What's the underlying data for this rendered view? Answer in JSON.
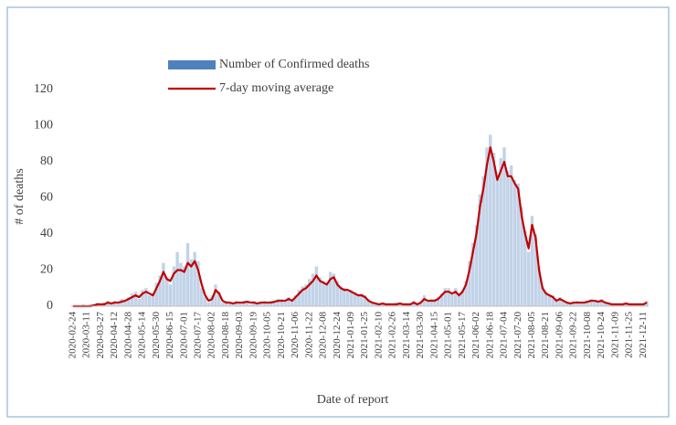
{
  "chart_data": {
    "type": "bar",
    "y_label": "# of deaths",
    "x_label": "Date of report",
    "categories": [
      "2020-02-24",
      null,
      null,
      null,
      "2020-03-11",
      null,
      null,
      null,
      "2020-03-27",
      null,
      null,
      null,
      "2020-04-12",
      null,
      null,
      null,
      "2020-04-28",
      null,
      null,
      null,
      "2020-05-14",
      null,
      null,
      null,
      "2020-05-30",
      null,
      null,
      null,
      "2020-06-15",
      null,
      null,
      null,
      "2020-07-01",
      null,
      null,
      null,
      "2020-07-17",
      null,
      null,
      null,
      "2020-08-02",
      null,
      null,
      null,
      "2020-08-18",
      null,
      null,
      null,
      "2020-09-03",
      null,
      null,
      null,
      "2020-09-19",
      null,
      null,
      null,
      "2020-10-05",
      null,
      null,
      null,
      "2020-10-21",
      null,
      null,
      null,
      "2020-11-06",
      null,
      null,
      null,
      "2020-11-22",
      null,
      null,
      null,
      "2020-12-08",
      null,
      null,
      null,
      "2020-12-24",
      null,
      null,
      null,
      "2021-01-09",
      null,
      null,
      null,
      "2021-01-25",
      null,
      null,
      null,
      "2021-02-10",
      null,
      null,
      null,
      "2021-02-26",
      null,
      null,
      null,
      "2021-03-14",
      null,
      null,
      null,
      "2021-03-30",
      null,
      null,
      null,
      "2021-04-15",
      null,
      null,
      null,
      "2021-05-01",
      null,
      null,
      null,
      "2021-05-17",
      null,
      null,
      null,
      "2021-06-02",
      null,
      null,
      null,
      "2021-06-18",
      null,
      null,
      null,
      "2021-07-04",
      null,
      null,
      null,
      "2021-07-20",
      null,
      null,
      null,
      "2021-08-05",
      null,
      null,
      null,
      "2021-08-21",
      null,
      null,
      null,
      "2021-09-06",
      null,
      null,
      null,
      "2021-09-22",
      null,
      null,
      null,
      "2021-10-08",
      null,
      null,
      null,
      "2021-10-24",
      null,
      null,
      null,
      "2021-11-09",
      null,
      null,
      null,
      "2021-11-25",
      null,
      null,
      null,
      "2021-12-11",
      null
    ],
    "series": [
      {
        "name": "Number of Confirmed deaths",
        "type": "bar",
        "color": "#4f81bd",
        "values": [
          0,
          0,
          0,
          1,
          0,
          1,
          1,
          2,
          1,
          2,
          3,
          2,
          3,
          2,
          4,
          3,
          5,
          7,
          8,
          4,
          9,
          10,
          6,
          7,
          13,
          17,
          24,
          16,
          12,
          22,
          30,
          24,
          22,
          35,
          26,
          30,
          25,
          10,
          5,
          2,
          6,
          12,
          8,
          2,
          3,
          2,
          1,
          3,
          2,
          3,
          3,
          1,
          3,
          1,
          2,
          3,
          2,
          3,
          3,
          4,
          4,
          3,
          5,
          3,
          6,
          9,
          11,
          12,
          15,
          18,
          22,
          16,
          14,
          13,
          19,
          18,
          14,
          11,
          10,
          8,
          9,
          8,
          6,
          7,
          6,
          3,
          2,
          1,
          1,
          2,
          1,
          1,
          1,
          2,
          2,
          1,
          1,
          1,
          3,
          1,
          2,
          6,
          3,
          4,
          4,
          5,
          7,
          10,
          10,
          7,
          10,
          6,
          9,
          14,
          25,
          35,
          45,
          62,
          72,
          88,
          95,
          85,
          72,
          82,
          88,
          75,
          78,
          70,
          68,
          55,
          42,
          30,
          50,
          40,
          22,
          11,
          8,
          6,
          6,
          3,
          5,
          3,
          2,
          1,
          2,
          3,
          2,
          2,
          3,
          4,
          3,
          3,
          4,
          2,
          2,
          1,
          1,
          1,
          1,
          2,
          1,
          1,
          1,
          1,
          1,
          3
        ]
      },
      {
        "name": "7-day moving average",
        "type": "line",
        "color": "#c00000",
        "values": [
          0,
          0,
          0,
          0,
          0,
          0,
          0.5,
          1,
          1,
          1,
          2,
          1.5,
          2,
          2,
          2.5,
          3,
          4,
          5,
          6,
          5,
          7,
          8,
          7,
          6,
          10,
          14,
          19,
          15,
          14,
          18,
          20,
          20,
          19,
          24,
          22,
          25,
          20,
          12,
          6,
          3,
          4,
          9,
          7,
          3,
          2,
          2,
          1.5,
          2,
          2,
          2,
          2.5,
          2,
          2,
          1.5,
          2,
          2,
          2,
          2,
          2.5,
          3,
          3,
          3,
          4,
          3,
          5,
          7,
          9,
          10,
          12,
          14,
          17,
          14,
          13,
          12,
          15,
          16,
          12,
          10,
          9,
          9,
          8,
          7,
          6,
          6,
          5,
          3,
          2,
          1.5,
          1,
          1.5,
          1,
          1,
          1,
          1,
          1.5,
          1,
          1,
          1,
          2,
          1,
          2,
          4,
          3,
          3,
          3,
          4,
          6,
          8,
          8,
          7,
          8,
          6,
          8,
          12,
          20,
          30,
          40,
          55,
          65,
          78,
          88,
          80,
          70,
          75,
          80,
          72,
          72,
          68,
          65,
          50,
          40,
          32,
          45,
          38,
          20,
          10,
          7,
          6,
          5,
          3,
          4,
          3,
          2,
          1.5,
          2,
          2,
          2,
          2,
          2.5,
          3,
          3,
          2.5,
          3,
          2,
          1.5,
          1,
          1,
          1,
          1,
          1.5,
          1,
          1,
          1,
          1,
          1,
          2
        ]
      }
    ],
    "ylim": [
      0,
      120
    ],
    "yticks": [
      0,
      20,
      40,
      60,
      80,
      100,
      120
    ],
    "legend": "top"
  }
}
